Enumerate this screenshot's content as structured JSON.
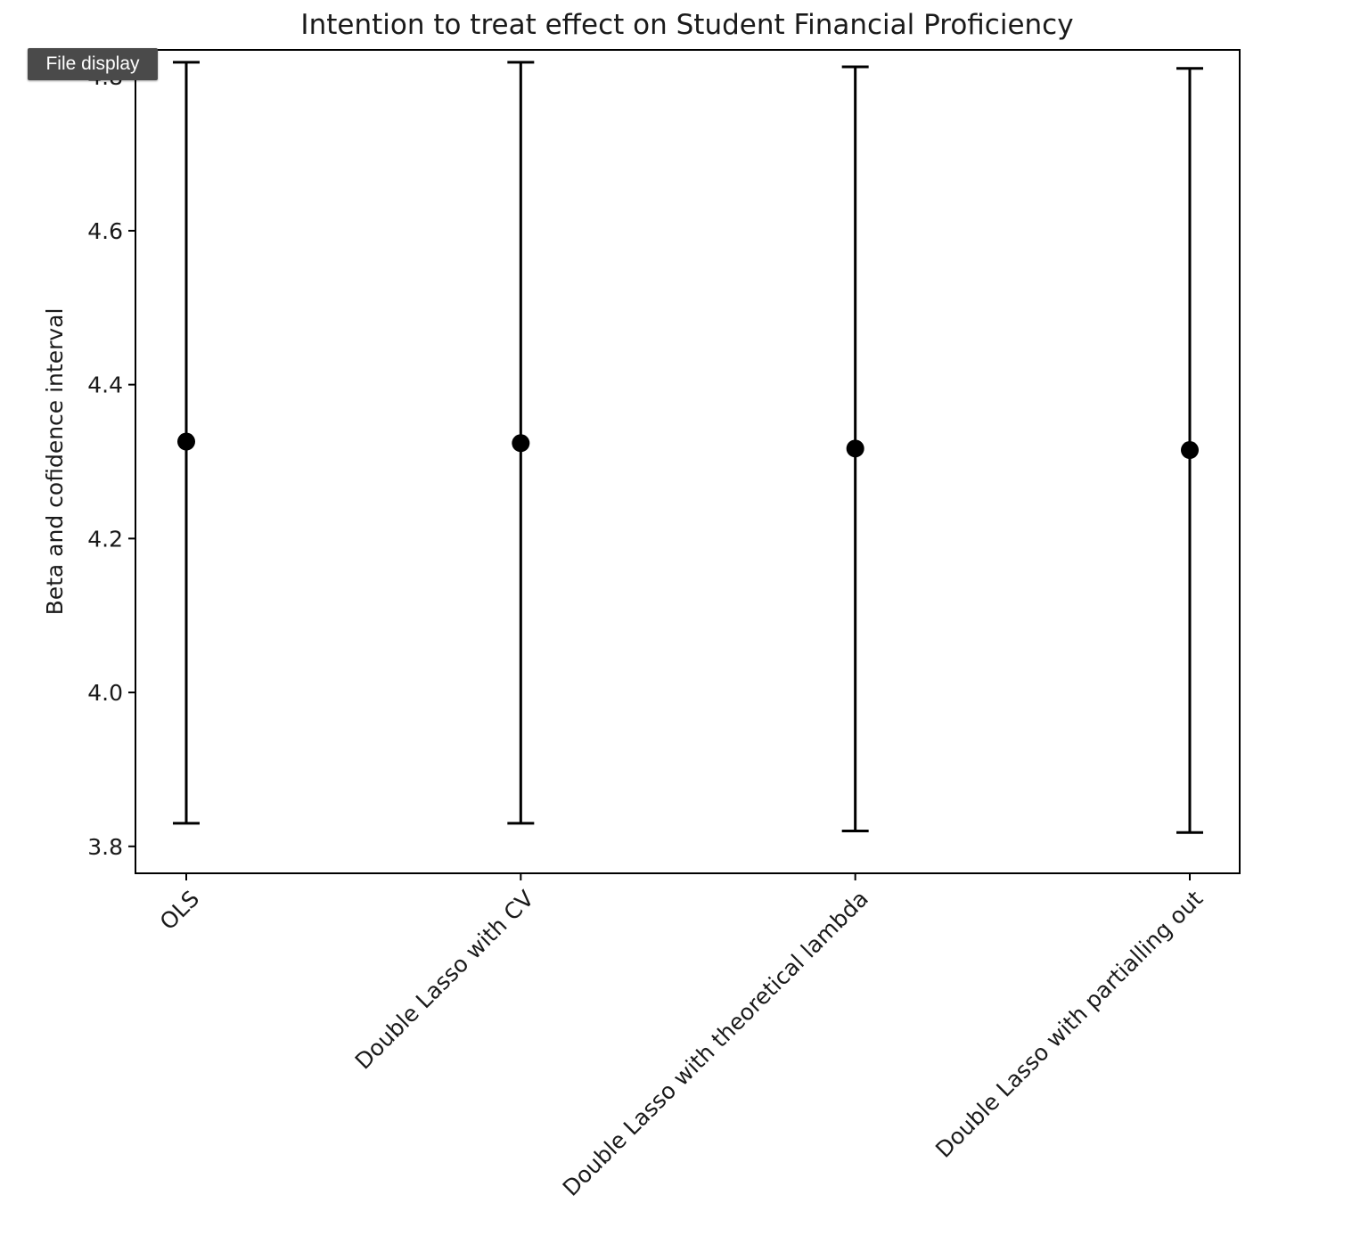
{
  "tooltip": {
    "label": "File display"
  },
  "chart_data": {
    "type": "errorbar",
    "title": "Intention to treat effect on Student Financial Proficiency",
    "xlabel": "",
    "ylabel": "Beta and cofidence interval",
    "ylim": [
      3.765,
      4.835
    ],
    "yticks": [
      3.8,
      4.0,
      4.2,
      4.4,
      4.6,
      4.8
    ],
    "ytick_labels": [
      "3.8",
      "4.0",
      "4.2",
      "4.4",
      "4.6",
      "4.8"
    ],
    "categories": [
      "OLS",
      "Double Lasso with CV",
      "Double Lasso with theoretical lambda",
      "Double Lasso with partialling out"
    ],
    "series": [
      {
        "estimate": [
          4.326,
          4.324,
          4.317,
          4.315
        ],
        "ci_lower": [
          3.83,
          3.83,
          3.82,
          3.818
        ],
        "ci_upper": [
          4.819,
          4.819,
          4.813,
          4.811
        ]
      }
    ],
    "grid": false,
    "colors": {
      "marker": "#000000",
      "axis": "#000000",
      "tooltip_bg": "#4a4a4a"
    }
  }
}
